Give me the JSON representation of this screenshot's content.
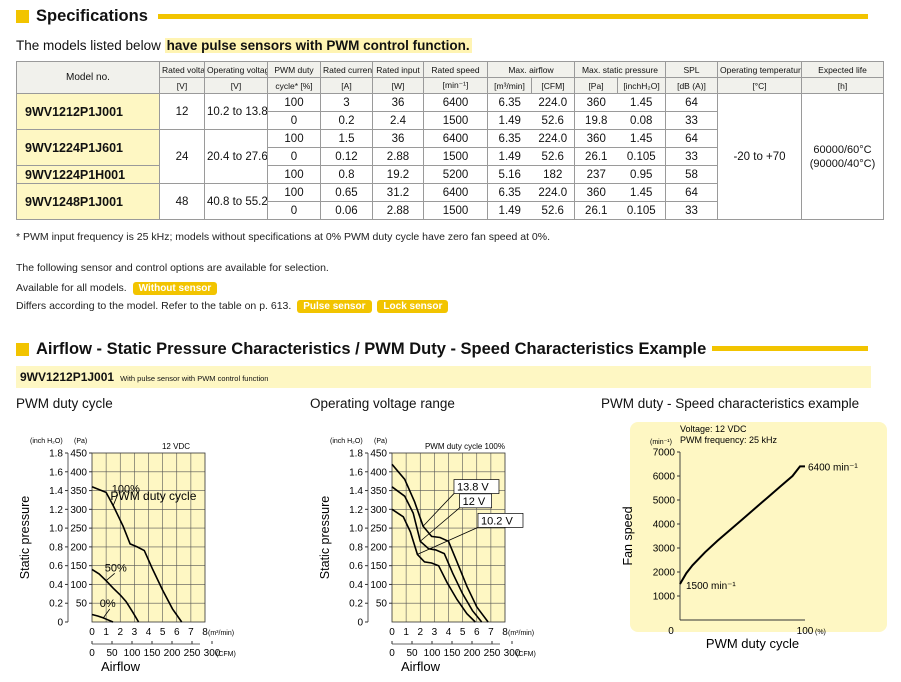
{
  "specs": {
    "title": "Specifications",
    "intro_plain": "The models listed below ",
    "intro_highlight": "have pulse sensors with PWM control function.",
    "headers": {
      "model": "Model no.",
      "rated_voltage": "Rated voltage",
      "rated_voltage_unit": "[V]",
      "op_range": "Operating voltage range",
      "op_range_unit": "[V]",
      "pwm": "PWM duty",
      "pwm_unit": "cycle* [%]",
      "current": "Rated current",
      "current_unit": "[A]",
      "input": "Rated input",
      "input_unit": "[W]",
      "speed": "Rated speed",
      "speed_unit": "[min⁻¹]",
      "airflow": "Max. airflow",
      "airflow_unit1": "[m³/min]",
      "airflow_unit2": "[CFM]",
      "pressure": "Max. static pressure",
      "pressure_unit1": "[Pa]",
      "pressure_unit2": "[inchH₂O]",
      "spl": "SPL",
      "spl_unit": "[dB (A)]",
      "temp": "Operating temperature",
      "temp_unit": "[°C]",
      "life": "Expected life",
      "life_unit": "[h]"
    },
    "models": [
      {
        "model": "9WV1212P1J001",
        "voltage": "12",
        "range": "10.2 to 13.8",
        "rows": [
          {
            "pwm": "100",
            "current": "3",
            "input": "36",
            "speed": "6400",
            "m3": "6.35",
            "cfm": "224.0",
            "pa": "360",
            "inch": "1.45",
            "spl": "64"
          },
          {
            "pwm": "0",
            "current": "0.2",
            "input": "2.4",
            "speed": "1500",
            "m3": "1.49",
            "cfm": "52.6",
            "pa": "19.8",
            "inch": "0.08",
            "spl": "33"
          }
        ]
      },
      {
        "model": "9WV1224P1J601",
        "voltage": "24",
        "range": "20.4 to 27.6",
        "rows": [
          {
            "pwm": "100",
            "current": "1.5",
            "input": "36",
            "speed": "6400",
            "m3": "6.35",
            "cfm": "224.0",
            "pa": "360",
            "inch": "1.45",
            "spl": "64"
          },
          {
            "pwm": "0",
            "current": "0.12",
            "input": "2.88",
            "speed": "1500",
            "m3": "1.49",
            "cfm": "52.6",
            "pa": "26.1",
            "inch": "0.105",
            "spl": "33"
          }
        ]
      },
      {
        "model": "9WV1224P1H001",
        "rows": [
          {
            "pwm": "100",
            "current": "0.8",
            "input": "19.2",
            "speed": "5200",
            "m3": "5.16",
            "cfm": "182",
            "pa": "237",
            "inch": "0.95",
            "spl": "58"
          }
        ]
      },
      {
        "model": "9WV1248P1J001",
        "voltage": "48",
        "range": "40.8 to 55.2",
        "rows": [
          {
            "pwm": "100",
            "current": "0.65",
            "input": "31.2",
            "speed": "6400",
            "m3": "6.35",
            "cfm": "224.0",
            "pa": "360",
            "inch": "1.45",
            "spl": "64"
          },
          {
            "pwm": "0",
            "current": "0.06",
            "input": "2.88",
            "speed": "1500",
            "m3": "1.49",
            "cfm": "52.6",
            "pa": "26.1",
            "inch": "0.105",
            "spl": "33"
          }
        ]
      }
    ],
    "temp_range": "-20 to +70",
    "life1": "60000/60°C",
    "life2": "(90000/40°C)",
    "footnote": "* PWM input frequency is 25 kHz; models without specifications at 0% PWM duty cycle have zero fan speed at 0%.",
    "options_intro": "The following sensor and control options are available for selection.",
    "avail_all": "Available for all models.",
    "without_sensor": "Without sensor",
    "differs": "Differs according to the model. Refer to the table on p. 613.",
    "pulse_sensor": "Pulse sensor",
    "lock_sensor": "Lock sensor"
  },
  "airflow_section": {
    "title": "Airflow - Static Pressure Characteristics / PWM Duty - Speed Characteristics Example",
    "model": "9WV1212P1J001",
    "model_note": "With pulse sensor with PWM control function"
  },
  "chart_data": [
    {
      "type": "line",
      "title": "PWM duty cycle",
      "annotation": "12 VDC",
      "legend_label": "PWM duty cycle",
      "xlabel": "Airflow",
      "ylabel": "Static pressure",
      "x_unit": "(m³/min)",
      "x2_unit": "(CFM)",
      "y_unit_inch": "(inch H₂O)",
      "y_unit_pa": "(Pa)",
      "xlim": [
        0,
        8
      ],
      "ylim_pa": [
        0,
        450
      ],
      "x_ticks": [
        "0",
        "1",
        "2",
        "3",
        "4",
        "5",
        "6",
        "7",
        "8"
      ],
      "x2_ticks": [
        "0",
        "50",
        "100",
        "150",
        "200",
        "250",
        "300"
      ],
      "y_pa_ticks": [
        "50",
        "100",
        "150",
        "200",
        "250",
        "300",
        "350",
        "400",
        "450"
      ],
      "y_inch_ticks": [
        "0",
        "0.2",
        "0.4",
        "0.6",
        "0.8",
        "1.0",
        "1.2",
        "1.4",
        "1.6",
        "1.8"
      ],
      "series": [
        {
          "name": "100%",
          "x": [
            0,
            1,
            1.5,
            2.2,
            2.7,
            3.2,
            3.7,
            4.3,
            5.0,
            5.7,
            6.35
          ],
          "y": [
            360,
            345,
            310,
            255,
            208,
            200,
            190,
            140,
            85,
            35,
            0
          ]
        },
        {
          "name": "50%",
          "x": [
            0,
            0.5,
            1,
            1.5,
            2,
            2.4,
            2.9,
            3.3
          ],
          "y": [
            140,
            128,
            110,
            90,
            72,
            55,
            25,
            0
          ]
        },
        {
          "name": "0%",
          "x": [
            0,
            0.4,
            0.8,
            1.1,
            1.49
          ],
          "y": [
            20,
            16,
            11,
            6,
            0
          ]
        }
      ]
    },
    {
      "type": "line",
      "title": "Operating voltage range",
      "annotation": "PWM duty cycle 100%",
      "xlabel": "Airflow",
      "ylabel": "Static pressure",
      "x_unit": "(m³/min)",
      "x2_unit": "(CFM)",
      "y_unit_inch": "(inch H₂O)",
      "y_unit_pa": "(Pa)",
      "xlim": [
        0,
        8
      ],
      "ylim_pa": [
        0,
        450
      ],
      "x_ticks": [
        "0",
        "1",
        "2",
        "3",
        "4",
        "5",
        "6",
        "7",
        "8"
      ],
      "x2_ticks": [
        "0",
        "50",
        "100",
        "150",
        "200",
        "250",
        "300"
      ],
      "y_pa_ticks": [
        "50",
        "100",
        "150",
        "200",
        "250",
        "300",
        "350",
        "400",
        "450"
      ],
      "y_inch_ticks": [
        "0",
        "0.2",
        "0.4",
        "0.6",
        "0.8",
        "1.0",
        "1.2",
        "1.4",
        "1.6",
        "1.8"
      ],
      "series": [
        {
          "name": "13.8 V",
          "x": [
            0,
            0.9,
            1.6,
            2.2,
            2.8,
            3.4,
            4.0,
            4.6,
            5.3,
            6.0,
            6.8
          ],
          "y": [
            420,
            380,
            320,
            255,
            228,
            225,
            215,
            160,
            95,
            40,
            0
          ]
        },
        {
          "name": "12 V",
          "x": [
            0,
            0.9,
            1.5,
            2.0,
            2.6,
            3.1,
            3.7,
            4.3,
            5.0,
            5.7,
            6.35
          ],
          "y": [
            360,
            335,
            290,
            215,
            195,
            192,
            182,
            130,
            75,
            30,
            0
          ]
        },
        {
          "name": "10.2 V",
          "x": [
            0,
            0.8,
            1.3,
            1.8,
            2.3,
            2.8,
            3.3,
            3.9,
            4.6,
            5.3,
            5.9
          ],
          "y": [
            300,
            280,
            240,
            180,
            160,
            157,
            150,
            105,
            60,
            22,
            0
          ]
        }
      ]
    },
    {
      "type": "line",
      "title": "PWM duty - Speed characteristics example",
      "annotation1": "Voltage: 12 VDC",
      "annotation2": "PWM frequency: 25 kHz",
      "xlabel": "PWM duty cycle",
      "ylabel": "Fan speed",
      "x_unit": "(%)",
      "y_unit": "(min⁻¹)",
      "xlim": [
        0,
        100
      ],
      "ylim": [
        0,
        7000
      ],
      "x_ticks": [
        "0",
        "100"
      ],
      "y_ticks": [
        "1000",
        "2000",
        "3000",
        "4000",
        "5000",
        "6000",
        "7000"
      ],
      "max_label": "6400 min⁻¹",
      "min_label": "1500 min⁻¹",
      "series": [
        {
          "name": "Speed",
          "x": [
            0,
            5,
            10,
            20,
            30,
            40,
            50,
            60,
            70,
            80,
            90,
            96,
            100
          ],
          "y": [
            1500,
            1950,
            2280,
            2820,
            3300,
            3750,
            4200,
            4650,
            5100,
            5550,
            6000,
            6400,
            6400
          ]
        }
      ]
    }
  ]
}
